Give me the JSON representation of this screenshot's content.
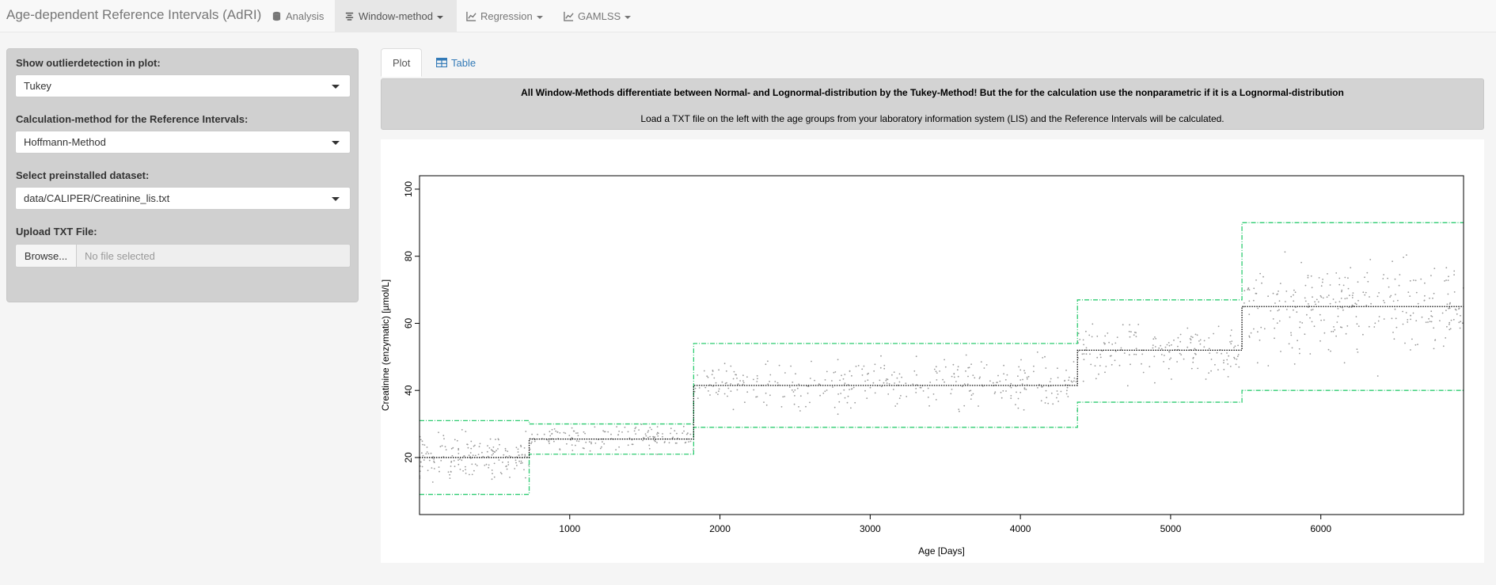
{
  "navbar": {
    "brand": "Age-dependent Reference Intervals (AdRI)",
    "items": [
      {
        "label": "Analysis",
        "icon": "database-icon",
        "dropdown": false,
        "active": false
      },
      {
        "label": "Window-method",
        "icon": "align-center-icon",
        "dropdown": true,
        "active": true
      },
      {
        "label": "Regression",
        "icon": "line-chart-icon",
        "dropdown": true,
        "active": false
      },
      {
        "label": "GAMLSS",
        "icon": "line-chart-icon",
        "dropdown": true,
        "active": false
      }
    ]
  },
  "sidebar": {
    "outlier": {
      "label": "Show outlierdetection in plot:",
      "value": "Tukey"
    },
    "calc": {
      "label": "Calculation-method for the Reference Intervals:",
      "value": "Hoffmann-Method"
    },
    "dataset": {
      "label": "Select preinstalled dataset:",
      "value": "data/CALIPER/Creatinine_lis.txt"
    },
    "upload": {
      "label": "Upload TXT File:",
      "button": "Browse...",
      "placeholder": "No file selected"
    }
  },
  "tabs": [
    {
      "label": "Plot",
      "active": true
    },
    {
      "label": "Table",
      "icon": "table-icon",
      "active": false
    }
  ],
  "info": {
    "line1": "All Window-Methods differentiate between Normal- and Lognormal-distribution by the Tukey-Method! But the for the calculation use the nonparametric if it is a Lognormal-distribution",
    "line2": "Load a TXT file on the left with the age groups from your laboratory information system (LIS) and the Reference Intervals will be calculated."
  },
  "colors": {
    "accent": "#337ab7",
    "ri_line": "#2ecc71",
    "median_line": "#000000",
    "points": "#999999"
  },
  "chart_data": {
    "type": "scatter",
    "xlabel": "Age [Days]",
    "ylabel": "Creatinine (enzymatic) [µmol/L]",
    "xlim": [
      0,
      6950
    ],
    "ylim": [
      3,
      104
    ],
    "x_ticks": [
      1000,
      2000,
      3000,
      4000,
      5000,
      6000
    ],
    "y_ticks": [
      20,
      40,
      60,
      80,
      100
    ],
    "grid": false,
    "segments": [
      {
        "x0": 0,
        "x1": 730,
        "median": 20,
        "lower": 9,
        "upper": 31
      },
      {
        "x0": 730,
        "x1": 1825,
        "median": 25.5,
        "lower": 21,
        "upper": 30
      },
      {
        "x0": 1825,
        "x1": 4380,
        "median": 41.5,
        "lower": 29,
        "upper": 54
      },
      {
        "x0": 4380,
        "x1": 5475,
        "median": 52,
        "lower": 36.5,
        "upper": 67
      },
      {
        "x0": 5475,
        "x1": 6950,
        "median": 65,
        "lower": 40,
        "upper": 90
      }
    ],
    "point_clusters": [
      {
        "x0": 0,
        "x1": 730,
        "center": 20,
        "spread": 6,
        "n": 170
      },
      {
        "x0": 730,
        "x1": 1825,
        "center": 26,
        "spread": 3.5,
        "n": 150
      },
      {
        "x0": 1825,
        "x1": 4380,
        "center": 42,
        "spread": 6,
        "n": 340
      },
      {
        "x0": 4380,
        "x1": 5475,
        "center": 52,
        "spread": 7,
        "n": 170
      },
      {
        "x0": 5475,
        "x1": 6950,
        "center": 65,
        "spread": 11,
        "n": 290
      }
    ]
  }
}
